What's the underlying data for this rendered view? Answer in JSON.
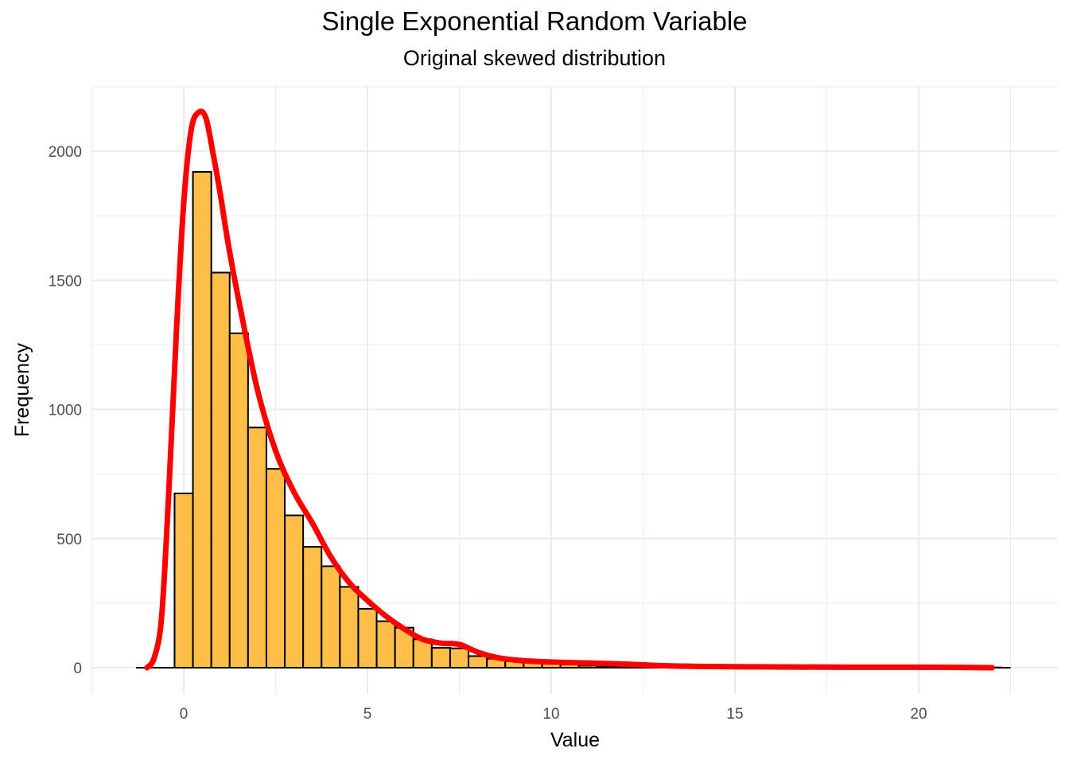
{
  "chart_data": {
    "type": "bar",
    "title": "Single Exponential Random Variable",
    "subtitle": "Original skewed distribution",
    "xlabel": "Value",
    "ylabel": "Frequency",
    "xlim": [
      -2.5,
      22.5
    ],
    "ylim": [
      -100,
      2250
    ],
    "x_ticks": [
      0,
      5,
      10,
      15,
      20
    ],
    "y_ticks": [
      0,
      500,
      1000,
      1500,
      2000
    ],
    "grid": true,
    "bin_width": 0.5,
    "bins": [
      {
        "x": 0.0,
        "count": 675
      },
      {
        "x": 0.5,
        "count": 1920
      },
      {
        "x": 1.0,
        "count": 1530
      },
      {
        "x": 1.5,
        "count": 1295
      },
      {
        "x": 2.0,
        "count": 930
      },
      {
        "x": 2.5,
        "count": 770
      },
      {
        "x": 3.0,
        "count": 590
      },
      {
        "x": 3.5,
        "count": 468
      },
      {
        "x": 4.0,
        "count": 393
      },
      {
        "x": 4.5,
        "count": 313
      },
      {
        "x": 5.0,
        "count": 228
      },
      {
        "x": 5.5,
        "count": 180
      },
      {
        "x": 6.0,
        "count": 155
      },
      {
        "x": 6.5,
        "count": 110
      },
      {
        "x": 7.0,
        "count": 77
      },
      {
        "x": 7.5,
        "count": 75
      },
      {
        "x": 8.0,
        "count": 45
      },
      {
        "x": 8.5,
        "count": 35
      },
      {
        "x": 9.0,
        "count": 25
      },
      {
        "x": 9.5,
        "count": 20
      },
      {
        "x": 10.0,
        "count": 15
      },
      {
        "x": 10.5,
        "count": 12
      },
      {
        "x": 11.0,
        "count": 8
      },
      {
        "x": 11.5,
        "count": 6
      },
      {
        "x": 12.0,
        "count": 5
      },
      {
        "x": 12.5,
        "count": 4
      },
      {
        "x": 13.0,
        "count": 3
      },
      {
        "x": 13.5,
        "count": 2
      },
      {
        "x": 14.0,
        "count": 2
      },
      {
        "x": 14.5,
        "count": 1
      },
      {
        "x": 15.0,
        "count": 1
      },
      {
        "x": 15.5,
        "count": 1
      },
      {
        "x": 16.0,
        "count": 1
      },
      {
        "x": 17.0,
        "count": 1
      },
      {
        "x": 18.0,
        "count": 1
      },
      {
        "x": 19.0,
        "count": 1
      },
      {
        "x": 20.0,
        "count": 1
      },
      {
        "x": 21.0,
        "count": 1
      },
      {
        "x": 22.0,
        "count": 1
      }
    ],
    "density_curve": {
      "x": [
        -1.0,
        -0.8,
        -0.6,
        -0.4,
        -0.2,
        0.0,
        0.2,
        0.4,
        0.6,
        0.8,
        1.0,
        1.2,
        1.5,
        2.0,
        2.5,
        3.0,
        3.5,
        4.0,
        4.5,
        5.0,
        5.5,
        6.0,
        6.5,
        7.0,
        7.5,
        8.0,
        8.5,
        9.0,
        9.5,
        10.0,
        10.5,
        11.0,
        12.0,
        13.0,
        14.0,
        16.0,
        18.0,
        20.0,
        22.0
      ],
      "y": [
        0,
        40,
        200,
        700,
        1300,
        1800,
        2080,
        2150,
        2130,
        1990,
        1830,
        1650,
        1420,
        1080,
        840,
        680,
        560,
        430,
        330,
        260,
        200,
        150,
        110,
        95,
        90,
        60,
        40,
        30,
        25,
        22,
        20,
        18,
        14,
        8,
        5,
        3,
        2,
        2,
        0
      ]
    },
    "colors": {
      "bar_fill": "#FFB733",
      "bar_stroke": "#000000",
      "curve": "#FF0000",
      "grid": "#EBEBEB"
    }
  }
}
